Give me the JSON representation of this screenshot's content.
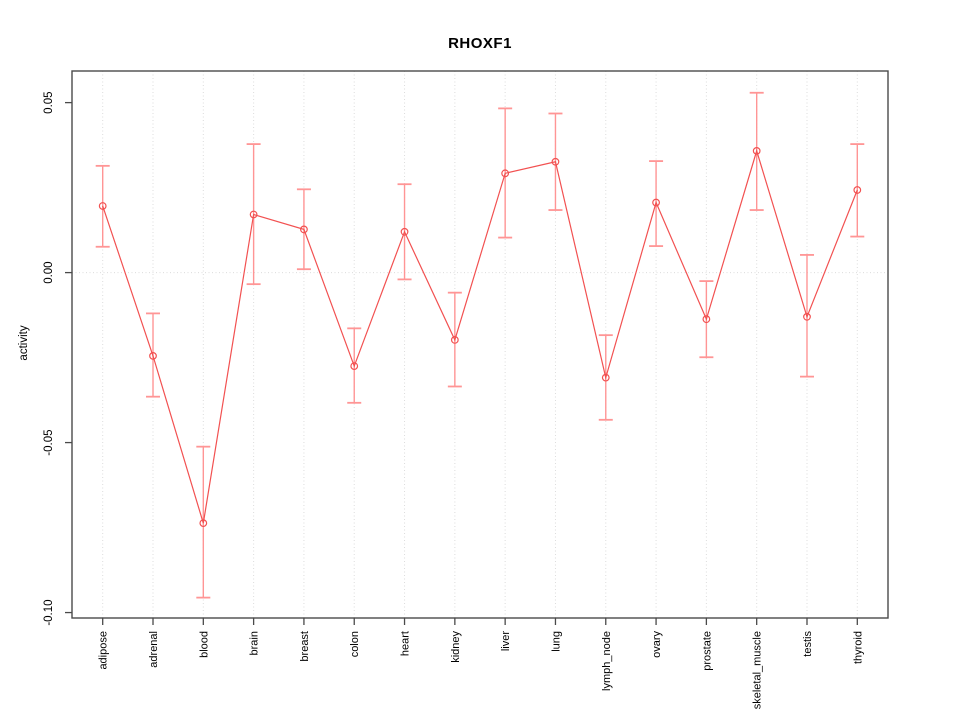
{
  "chart_data": {
    "type": "line",
    "title": "RHOXF1",
    "xlabel": "",
    "ylabel": "activity",
    "categories": [
      "adipose",
      "adrenal",
      "blood",
      "brain",
      "breast",
      "colon",
      "heart",
      "kidney",
      "liver",
      "lung",
      "lymph_node",
      "ovary",
      "prostate",
      "skeletal_muscle",
      "testis",
      "thyroid"
    ],
    "series": [
      {
        "name": "activity",
        "values": [
          0.0196,
          -0.0245,
          -0.0737,
          0.0171,
          0.0127,
          -0.0275,
          0.012,
          -0.0198,
          0.0292,
          0.0326,
          -0.0309,
          0.0206,
          -0.0137,
          0.0358,
          -0.013,
          0.0243
        ],
        "lower": [
          0.0076,
          -0.0365,
          -0.0956,
          -0.0034,
          0.001,
          -0.0383,
          -0.002,
          -0.0335,
          0.0103,
          0.0184,
          -0.0433,
          0.0078,
          -0.0249,
          0.0184,
          -0.0306,
          0.0106
        ],
        "upper": [
          0.0314,
          -0.012,
          -0.0512,
          0.0378,
          0.0245,
          -0.0164,
          0.026,
          -0.0059,
          0.0483,
          0.0468,
          -0.0184,
          0.0328,
          -0.0025,
          0.0529,
          0.0052,
          0.0378
        ]
      }
    ],
    "yticks": [
      0.05,
      0.0,
      -0.05,
      -0.1
    ],
    "ytick_labels": [
      "0.05",
      "0.00",
      "-0.05",
      "-0.10"
    ],
    "ylim": [
      -0.1016,
      0.0593
    ],
    "grid": "dotted vertical line at each category; dotted horizontal line at y=0",
    "legend": "none",
    "marker": "open-circle",
    "colors": {
      "line": "#f25151",
      "marker": "#f25151",
      "error_bar": "#ff9595",
      "grid": "#dcdcdc",
      "box": "#4a4a4a",
      "tick": "#4a4a4a",
      "text": "#000000",
      "background": "#ffffff"
    }
  }
}
